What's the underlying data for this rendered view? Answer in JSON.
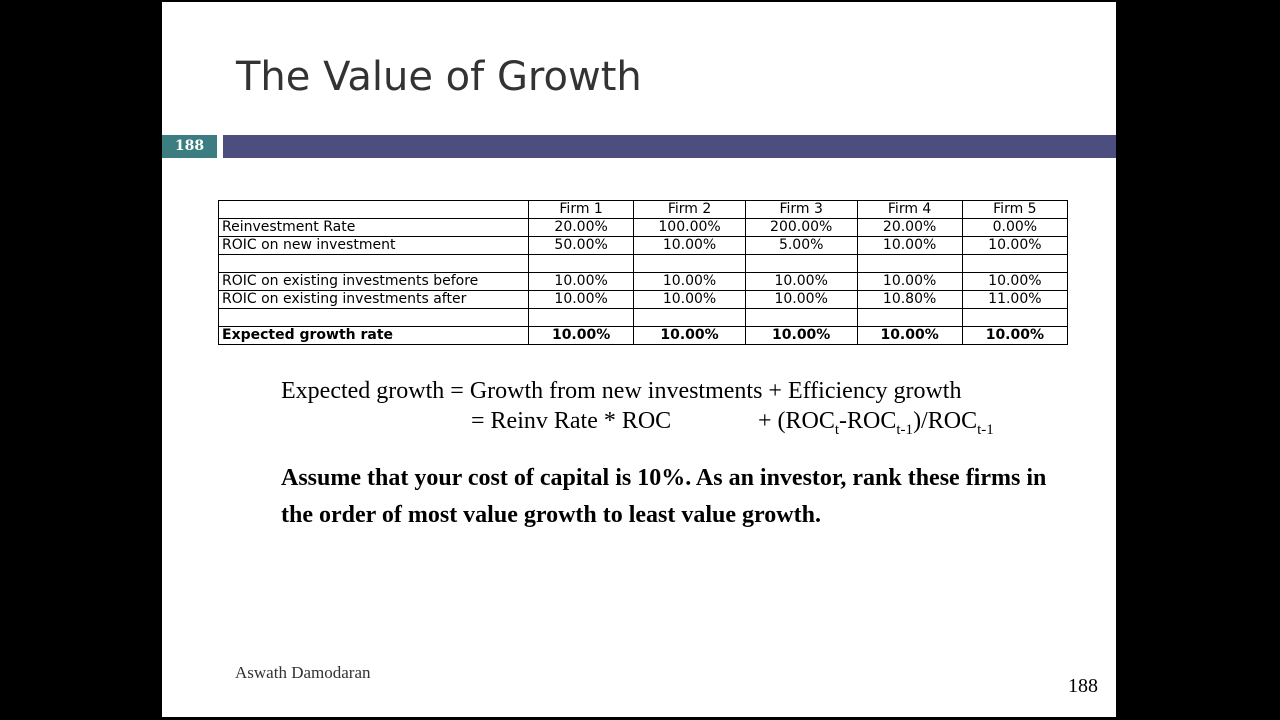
{
  "slide": {
    "title": "The Value of Growth",
    "slide_number_badge": "188",
    "author": "Aswath Damodaran",
    "page_number": "188",
    "colors": {
      "badge": "#3b7d80",
      "bar": "#4c4e80"
    }
  },
  "table": {
    "headers": [
      "",
      "Firm 1",
      "Firm 2",
      "Firm 3",
      "Firm 4",
      "Firm 5"
    ],
    "rows": [
      {
        "label": "Reinvestment Rate",
        "values": [
          "20.00%",
          "100.00%",
          "200.00%",
          "20.00%",
          "0.00%"
        ]
      },
      {
        "label": "ROIC on new investment",
        "values": [
          "50.00%",
          "10.00%",
          "5.00%",
          "10.00%",
          "10.00%"
        ]
      },
      {
        "label": "",
        "values": [
          "",
          "",
          "",
          "",
          ""
        ]
      },
      {
        "label": "ROIC on existing investments before",
        "values": [
          "10.00%",
          "10.00%",
          "10.00%",
          "10.00%",
          "10.00%"
        ]
      },
      {
        "label": "ROIC on existing investments after",
        "values": [
          "10.00%",
          "10.00%",
          "10.00%",
          "10.80%",
          "11.00%"
        ]
      },
      {
        "label": "",
        "values": [
          "",
          "",
          "",
          "",
          ""
        ]
      },
      {
        "label": "Expected growth rate",
        "values": [
          "10.00%",
          "10.00%",
          "10.00%",
          "10.00%",
          "10.00%"
        ]
      }
    ]
  },
  "formula": {
    "line1": "Expected growth = Growth from new investments + Efficiency growth",
    "line2a": "= Reinv Rate * ROC",
    "line2b_prefix": "+ (ROC",
    "sub_t": "t",
    "dash": "-ROC",
    "sub_t1": "t-1",
    "close": ")/ROC",
    "sub_t1b": "t-1"
  },
  "question": "Assume that your cost of capital is 10%. As an investor, rank these firms in the order of most value growth to least value growth."
}
